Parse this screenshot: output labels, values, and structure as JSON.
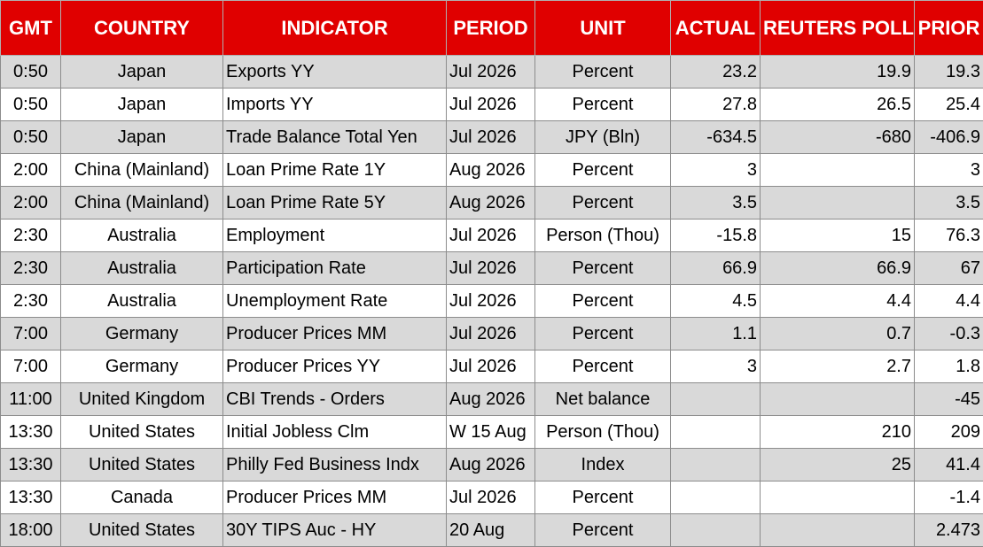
{
  "headers": {
    "gmt": "GMT",
    "country": "COUNTRY",
    "indicator": "INDICATOR",
    "period": "PERIOD",
    "unit": "UNIT",
    "actual": "ACTUAL",
    "poll": "REUTERS POLL",
    "prior": "PRIOR"
  },
  "colors": {
    "header_bg": "#e00000",
    "header_text": "#ffffff",
    "row_shade": "#d9d9d9",
    "row_plain": "#ffffff"
  },
  "rows": [
    {
      "gmt": "0:50",
      "country": "Japan",
      "indicator": "Exports YY",
      "period": "Jul 2026",
      "unit": "Percent",
      "actual": "23.2",
      "poll": "19.9",
      "prior": "19.3"
    },
    {
      "gmt": "0:50",
      "country": "Japan",
      "indicator": "Imports YY",
      "period": "Jul 2026",
      "unit": "Percent",
      "actual": "27.8",
      "poll": "26.5",
      "prior": "25.4"
    },
    {
      "gmt": "0:50",
      "country": "Japan",
      "indicator": "Trade Balance Total Yen",
      "period": "Jul 2026",
      "unit": "JPY (Bln)",
      "actual": "-634.5",
      "poll": "-680",
      "prior": "-406.9"
    },
    {
      "gmt": "2:00",
      "country": "China (Mainland)",
      "indicator": "Loan Prime Rate 1Y",
      "period": "Aug 2026",
      "unit": "Percent",
      "actual": "3",
      "poll": "",
      "prior": "3"
    },
    {
      "gmt": "2:00",
      "country": "China (Mainland)",
      "indicator": "Loan Prime Rate 5Y",
      "period": "Aug 2026",
      "unit": "Percent",
      "actual": "3.5",
      "poll": "",
      "prior": "3.5"
    },
    {
      "gmt": "2:30",
      "country": "Australia",
      "indicator": "Employment",
      "period": "Jul 2026",
      "unit": "Person (Thou)",
      "actual": "-15.8",
      "poll": "15",
      "prior": "76.3"
    },
    {
      "gmt": "2:30",
      "country": "Australia",
      "indicator": "Participation Rate",
      "period": "Jul 2026",
      "unit": "Percent",
      "actual": "66.9",
      "poll": "66.9",
      "prior": "67"
    },
    {
      "gmt": "2:30",
      "country": "Australia",
      "indicator": "Unemployment Rate",
      "period": "Jul 2026",
      "unit": "Percent",
      "actual": "4.5",
      "poll": "4.4",
      "prior": "4.4"
    },
    {
      "gmt": "7:00",
      "country": "Germany",
      "indicator": "Producer Prices MM",
      "period": "Jul 2026",
      "unit": "Percent",
      "actual": "1.1",
      "poll": "0.7",
      "prior": "-0.3"
    },
    {
      "gmt": "7:00",
      "country": "Germany",
      "indicator": "Producer Prices YY",
      "period": "Jul 2026",
      "unit": "Percent",
      "actual": "3",
      "poll": "2.7",
      "prior": "1.8"
    },
    {
      "gmt": "11:00",
      "country": "United Kingdom",
      "indicator": "CBI Trends - Orders",
      "period": "Aug 2026",
      "unit": "Net balance",
      "actual": "",
      "poll": "",
      "prior": "-45"
    },
    {
      "gmt": "13:30",
      "country": "United States",
      "indicator": "Initial Jobless Clm",
      "period": "W 15 Aug",
      "unit": "Person (Thou)",
      "actual": "",
      "poll": "210",
      "prior": "209"
    },
    {
      "gmt": "13:30",
      "country": "United States",
      "indicator": "Philly Fed Business Indx",
      "period": "Aug 2026",
      "unit": "Index",
      "actual": "",
      "poll": "25",
      "prior": "41.4"
    },
    {
      "gmt": "13:30",
      "country": "Canada",
      "indicator": "Producer Prices MM",
      "period": "Jul 2026",
      "unit": "Percent",
      "actual": "",
      "poll": "",
      "prior": "-1.4"
    },
    {
      "gmt": "18:00",
      "country": "United States",
      "indicator": "30Y TIPS Auc - HY",
      "period": "20 Aug",
      "unit": "Percent",
      "actual": "",
      "poll": "",
      "prior": "2.473"
    }
  ]
}
